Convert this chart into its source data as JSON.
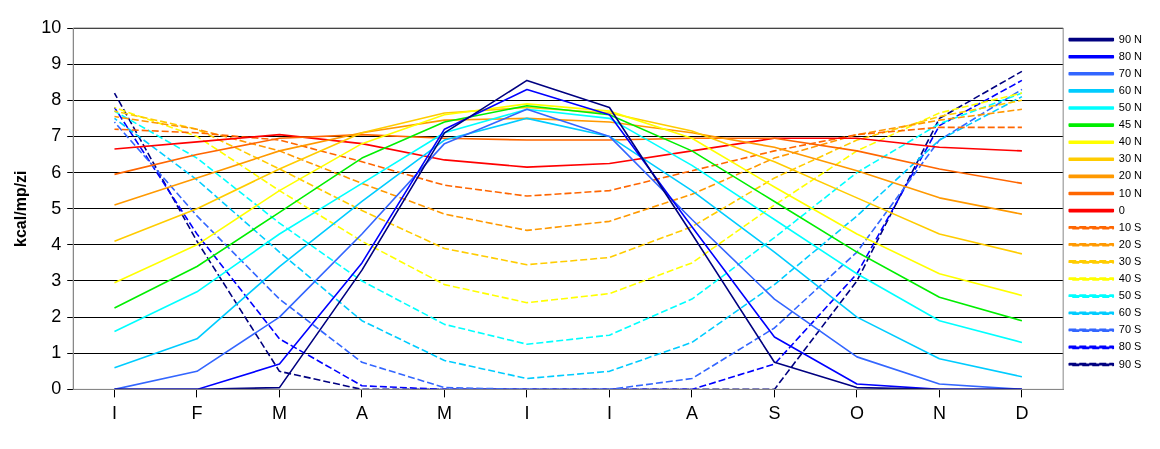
{
  "chart_data": {
    "type": "line",
    "ylabel": "kcal/mp/zi",
    "categories": [
      "I",
      "F",
      "M",
      "A",
      "M",
      "I",
      "I",
      "A",
      "S",
      "O",
      "N",
      "D"
    ],
    "ylim": [
      0,
      10
    ],
    "yticks": [
      0,
      1,
      2,
      3,
      4,
      5,
      6,
      7,
      8,
      9,
      10
    ],
    "grid": "y",
    "legend": "right",
    "marker": "none",
    "series": [
      {
        "name": "90 N",
        "color": "#000080",
        "line_style": "solid",
        "values": [
          0,
          0,
          0.05,
          3.3,
          7.1,
          8.55,
          7.8,
          4.3,
          0.75,
          0.05,
          0,
          0
        ]
      },
      {
        "name": "80 N",
        "color": "#0000ff",
        "line_style": "solid",
        "values": [
          0,
          0,
          0.7,
          3.5,
          7.2,
          8.3,
          7.6,
          4.5,
          1.45,
          0.15,
          0,
          0
        ]
      },
      {
        "name": "70 N",
        "color": "#3366ff",
        "line_style": "solid",
        "values": [
          0,
          0.5,
          2.0,
          4.3,
          6.8,
          7.75,
          7.0,
          4.7,
          2.5,
          0.9,
          0.15,
          0
        ]
      },
      {
        "name": "60 N",
        "color": "#00ccff",
        "line_style": "solid",
        "values": [
          0.6,
          1.4,
          3.4,
          5.2,
          6.9,
          7.5,
          7.0,
          5.5,
          3.8,
          2.0,
          0.85,
          0.35
        ]
      },
      {
        "name": "50 N",
        "color": "#00ffff",
        "line_style": "solid",
        "values": [
          1.6,
          2.7,
          4.3,
          5.7,
          7.1,
          7.75,
          7.5,
          6.2,
          4.7,
          3.2,
          1.9,
          1.3
        ]
      },
      {
        "name": "45 N",
        "color": "#00ee00",
        "line_style": "solid",
        "values": [
          2.25,
          3.4,
          4.9,
          6.4,
          7.4,
          7.85,
          7.6,
          6.6,
          5.2,
          3.8,
          2.55,
          1.9
        ]
      },
      {
        "name": "40 N",
        "color": "#ffff00",
        "line_style": "solid",
        "values": [
          2.95,
          4.0,
          5.5,
          6.8,
          7.6,
          7.9,
          7.7,
          6.95,
          5.6,
          4.3,
          3.2,
          2.6
        ]
      },
      {
        "name": "30 N",
        "color": "#ffcc00",
        "line_style": "solid",
        "values": [
          4.1,
          5.0,
          6.1,
          7.1,
          7.65,
          7.8,
          7.65,
          7.15,
          6.3,
          5.3,
          4.3,
          3.75
        ]
      },
      {
        "name": "20 N",
        "color": "#ff9900",
        "line_style": "solid",
        "values": [
          5.1,
          5.85,
          6.6,
          7.1,
          7.45,
          7.5,
          7.4,
          7.1,
          6.7,
          6.05,
          5.3,
          4.85
        ]
      },
      {
        "name": "10 N",
        "color": "#ff6600",
        "line_style": "solid",
        "values": [
          5.95,
          6.5,
          6.95,
          7.05,
          6.95,
          6.9,
          6.9,
          6.95,
          6.95,
          6.6,
          6.1,
          5.7
        ]
      },
      {
        "name": "0",
        "color": "#ff0000",
        "line_style": "solid",
        "values": [
          6.65,
          6.85,
          7.05,
          6.8,
          6.35,
          6.15,
          6.25,
          6.6,
          6.95,
          6.95,
          6.7,
          6.6
        ]
      },
      {
        "name": "10 S",
        "color": "#ff6600",
        "line_style": "dashed",
        "values": [
          7.2,
          7.1,
          6.9,
          6.3,
          5.65,
          5.35,
          5.5,
          6.05,
          6.6,
          7.05,
          7.25,
          7.25
        ]
      },
      {
        "name": "20 S",
        "color": "#ff9900",
        "line_style": "dashed",
        "values": [
          7.55,
          7.2,
          6.6,
          5.7,
          4.85,
          4.4,
          4.65,
          5.4,
          6.4,
          7.05,
          7.45,
          7.75
        ]
      },
      {
        "name": "30 S",
        "color": "#ffcc00",
        "line_style": "dashed",
        "values": [
          7.7,
          7.2,
          6.1,
          4.95,
          3.9,
          3.45,
          3.65,
          4.5,
          5.85,
          6.9,
          7.55,
          8.0
        ]
      },
      {
        "name": "40 S",
        "color": "#ffff00",
        "line_style": "dashed",
        "values": [
          7.8,
          7.0,
          5.5,
          4.1,
          2.9,
          2.4,
          2.65,
          3.5,
          5.1,
          6.6,
          7.65,
          8.2
        ]
      },
      {
        "name": "50 S",
        "color": "#00ffff",
        "line_style": "dashed",
        "values": [
          7.7,
          6.4,
          4.6,
          3.0,
          1.8,
          1.25,
          1.5,
          2.5,
          4.2,
          6.0,
          7.35,
          8.2
        ]
      },
      {
        "name": "60 S",
        "color": "#00ccff",
        "line_style": "dashed",
        "values": [
          7.5,
          5.8,
          3.8,
          1.9,
          0.8,
          0.3,
          0.5,
          1.3,
          2.9,
          4.8,
          6.9,
          8.1
        ]
      },
      {
        "name": "70 S",
        "color": "#3366ff",
        "line_style": "dashed",
        "values": [
          7.4,
          4.8,
          2.5,
          0.75,
          0.05,
          0,
          0,
          0.3,
          1.7,
          3.8,
          6.9,
          8.3
        ]
      },
      {
        "name": "80 S",
        "color": "#0000ff",
        "line_style": "dashed",
        "values": [
          7.8,
          4.3,
          1.4,
          0.1,
          0,
          0,
          0,
          0,
          0.7,
          3.2,
          7.3,
          8.55
        ]
      },
      {
        "name": "90 S",
        "color": "#000080",
        "line_style": "dashed",
        "values": [
          8.2,
          4.1,
          0.5,
          0,
          0,
          0,
          0,
          0,
          0,
          3.0,
          7.5,
          8.8
        ]
      }
    ]
  }
}
